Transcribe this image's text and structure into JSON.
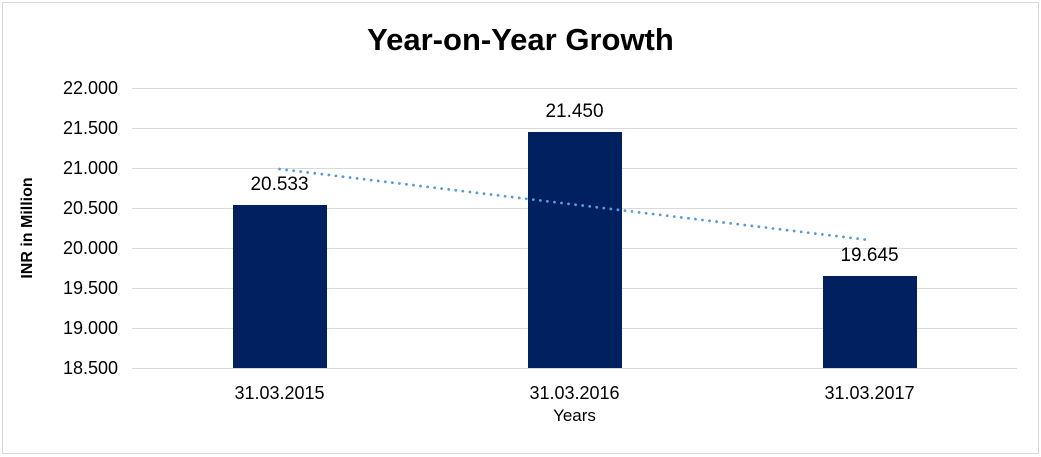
{
  "chart_data": {
    "type": "bar",
    "title": "Year-on-Year Growth",
    "xlabel": "Years",
    "ylabel": "INR in Million",
    "categories": [
      "31.03.2015",
      "31.03.2016",
      "31.03.2017"
    ],
    "values": [
      20.533,
      21.45,
      19.645
    ],
    "value_labels": [
      "20.533",
      "21.450",
      "19.645"
    ],
    "ylim": [
      18.5,
      22.0
    ],
    "ytick_step": 0.5,
    "ytick_labels": [
      "18.500",
      "19.000",
      "19.500",
      "20.000",
      "20.500",
      "21.000",
      "21.500",
      "22.000"
    ],
    "grid": true,
    "legend": "none",
    "bar_color": "#002060",
    "gridline_color": "#d9d9d9",
    "text_color": "#000000",
    "trendline": {
      "type": "linear",
      "style": "dotted",
      "color": "#5b9bd5",
      "start_value": 20.987,
      "end_value": 20.099
    }
  }
}
